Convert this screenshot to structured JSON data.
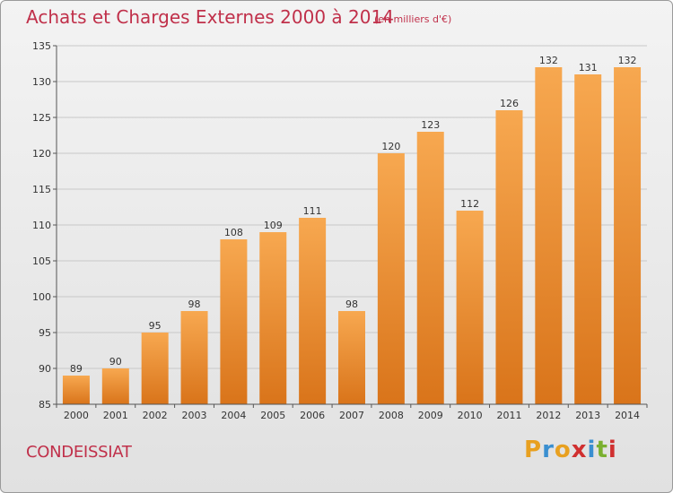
{
  "header": {
    "title": "Achats et Charges Externes 2000 à 2014",
    "subtitle": "(en milliers d'€)"
  },
  "footer": {
    "commune": "CONDEISSIAT",
    "logo": "Proxiti",
    "logo_colors": [
      "#e8a020",
      "#3a8fd0",
      "#e8a020",
      "#d03030",
      "#3a8fd0",
      "#7ab030",
      "#d03030"
    ]
  },
  "colors": {
    "bar_light": "#f7a850",
    "bar_dark": "#d9741a",
    "grid": "#c8c8c8",
    "title": "#c0304a"
  },
  "chart_data": {
    "type": "bar",
    "title": "Achats et Charges Externes 2000 à 2014",
    "subtitle": "(en milliers d'€)",
    "xlabel": "",
    "ylabel": "",
    "categories": [
      "2000",
      "2001",
      "2002",
      "2003",
      "2004",
      "2005",
      "2006",
      "2007",
      "2008",
      "2009",
      "2010",
      "2011",
      "2012",
      "2013",
      "2014"
    ],
    "values": [
      89,
      90,
      95,
      98,
      108,
      109,
      111,
      98,
      120,
      123,
      112,
      126,
      132,
      131,
      132
    ],
    "ylim": [
      85,
      135
    ],
    "yticks": [
      85,
      90,
      95,
      100,
      105,
      110,
      115,
      120,
      125,
      130,
      135
    ],
    "grid": true,
    "legend": "none"
  }
}
